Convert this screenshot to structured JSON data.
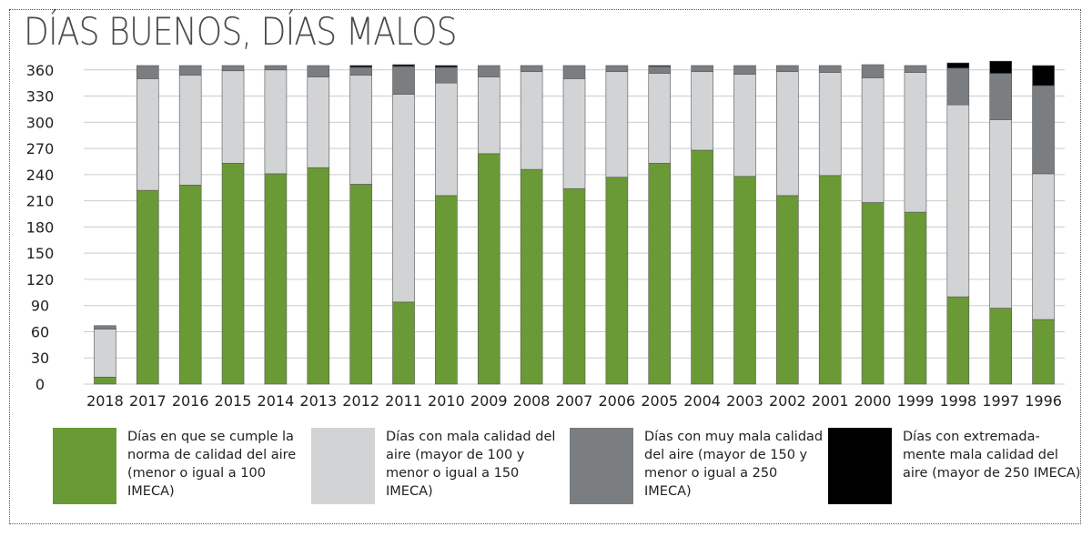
{
  "title": "DÍAS BUENOS, DÍAS MALOS",
  "colors": {
    "buenos": "#6a9a35",
    "mala": "#d2d3d5",
    "muy_mala": "#7b7e80",
    "extrema": "#000000",
    "grid": "#cccccc"
  },
  "legend": [
    {
      "key": "buenos",
      "label": "Días en que se cumple la norma de calidad del aire (menor o igual a 100 IMECA)"
    },
    {
      "key": "mala",
      "label": "Días con mala calidad del aire (mayor de 100 y menor o igual a 150 IMECA)"
    },
    {
      "key": "muy_mala",
      "label": "Días con muy mala calidad del aire (mayor de 150 y menor o igual a 250 IMECA)"
    },
    {
      "key": "extrema",
      "label": "Días con extremada- mente mala calidad del aire (mayor de 250 IMECA)"
    }
  ],
  "chart_data": {
    "type": "bar",
    "stacked": true,
    "title": "DÍAS BUENOS, DÍAS MALOS",
    "xlabel": "",
    "ylabel": "",
    "ylim": [
      0,
      365
    ],
    "yticks": [
      0,
      30,
      60,
      90,
      120,
      150,
      180,
      210,
      240,
      270,
      300,
      330,
      360
    ],
    "grid": true,
    "legend_position": "bottom",
    "categories": [
      "2018",
      "2017",
      "2016",
      "2015",
      "2014",
      "2013",
      "2012",
      "2011",
      "2010",
      "2009",
      "2008",
      "2007",
      "2006",
      "2005",
      "2004",
      "2003",
      "2002",
      "2001",
      "2000",
      "1999",
      "1998",
      "1997",
      "1996"
    ],
    "series": [
      {
        "name": "Días en que se cumple la norma de calidad del aire (menor o igual a 100 IMECA)",
        "color": "#6a9a35",
        "values": [
          8,
          222,
          228,
          253,
          241,
          248,
          229,
          94,
          216,
          264,
          246,
          224,
          237,
          253,
          268,
          238,
          216,
          239,
          208,
          197,
          100,
          87,
          74
        ]
      },
      {
        "name": "Días con mala calidad del aire (mayor de 100 y menor o igual a 150 IMECA)",
        "color": "#d2d3d5",
        "values": [
          55,
          128,
          126,
          106,
          119,
          104,
          125,
          238,
          129,
          88,
          112,
          126,
          121,
          103,
          90,
          117,
          142,
          118,
          143,
          160,
          220,
          216,
          167
        ]
      },
      {
        "name": "Días con muy mala calidad del aire (mayor de 150 y menor o igual a 250 IMECA)",
        "color": "#7b7e80",
        "values": [
          4,
          15,
          11,
          6,
          5,
          13,
          9,
          32,
          18,
          13,
          7,
          15,
          7,
          8,
          7,
          10,
          7,
          8,
          15,
          8,
          42,
          53,
          101
        ]
      },
      {
        "name": "Días con extremadamente mala calidad del aire (mayor de 250 IMECA)",
        "color": "#000000",
        "values": [
          0,
          0,
          0,
          0,
          0,
          0,
          2,
          2,
          2,
          0,
          0,
          0,
          0,
          1,
          0,
          0,
          0,
          0,
          0,
          0,
          6,
          14,
          23
        ]
      }
    ]
  }
}
